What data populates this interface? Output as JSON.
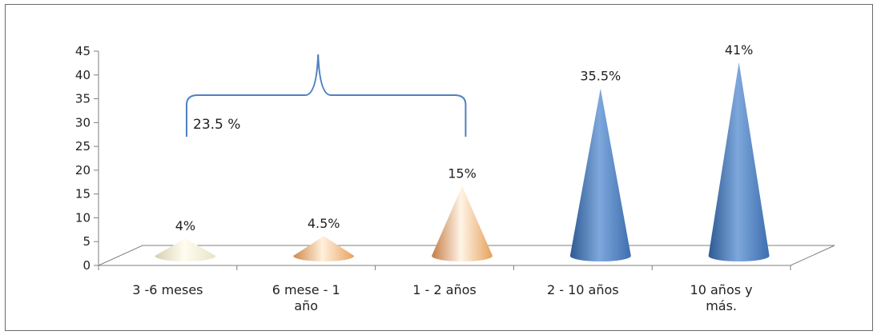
{
  "chart_data": {
    "type": "bar",
    "bar_shape": "cone-3d",
    "categories": [
      [
        "3 -6 meses"
      ],
      [
        "6 mese - 1",
        "año"
      ],
      [
        "1 - 2 años"
      ],
      [
        "2 - 10 años"
      ],
      [
        "10 años y",
        "más."
      ]
    ],
    "values": [
      4,
      4.5,
      15,
      35.5,
      41
    ],
    "data_labels": [
      "4%",
      "4.5%",
      "15%",
      "35.5%",
      "41%"
    ],
    "yticks": [
      "0",
      "5",
      "10",
      "15",
      "20",
      "25",
      "30",
      "35",
      "40",
      "45"
    ],
    "ylim": [
      0,
      45
    ],
    "ystep": 5,
    "grid": false,
    "legend": "none",
    "title": "",
    "xlabel": "",
    "ylabel": "",
    "annotations": [
      {
        "type": "brace",
        "label": "23.5 %",
        "from_category": 0,
        "to_category": 2
      }
    ],
    "colors": {
      "axis": "#7f7f7f",
      "brace": "#4f81bd",
      "cones": [
        [
          "#d6cfb0",
          "#fffdf0",
          "#e9e3c6"
        ],
        [
          "#d08a4a",
          "#fff0dc",
          "#e8a260"
        ],
        [
          "#c57d45",
          "#fff4e6",
          "#e6a15c"
        ],
        [
          "#2d5a93",
          "#7ea8dc",
          "#3e6eaf"
        ],
        [
          "#2d5a93",
          "#7ea8dc",
          "#3e6eaf"
        ]
      ]
    }
  }
}
